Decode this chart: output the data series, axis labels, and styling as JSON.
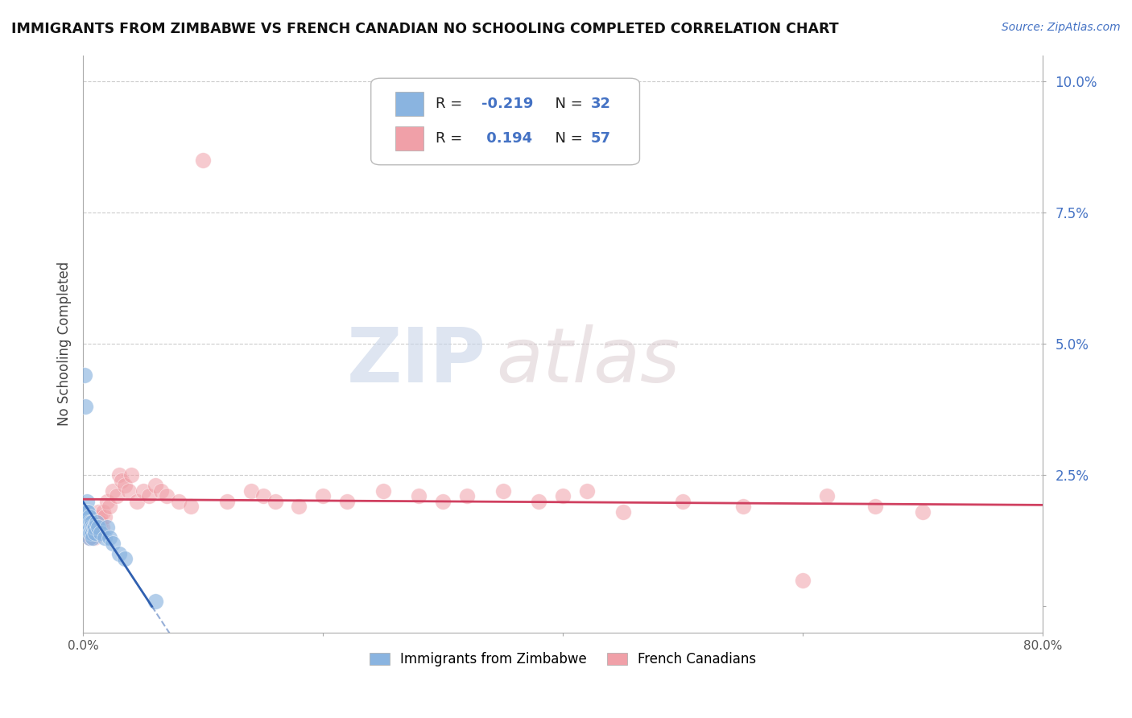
{
  "title": "IMMIGRANTS FROM ZIMBABWE VS FRENCH CANADIAN NO SCHOOLING COMPLETED CORRELATION CHART",
  "source": "Source: ZipAtlas.com",
  "ylabel": "No Schooling Completed",
  "xlim": [
    0.0,
    0.8
  ],
  "ylim": [
    -0.005,
    0.105
  ],
  "ytick_vals": [
    0.0,
    0.025,
    0.05,
    0.075,
    0.1
  ],
  "ytick_labels": [
    "",
    "2.5%",
    "5.0%",
    "7.5%",
    "10.0%"
  ],
  "xtick_vals": [
    0.0,
    0.2,
    0.4,
    0.6,
    0.8
  ],
  "xtick_labels": [
    "0.0%",
    "",
    "",
    "",
    "80.0%"
  ],
  "legend1_label": "Immigrants from Zimbabwe",
  "legend2_label": "French Canadians",
  "R1": -0.219,
  "N1": 32,
  "R2": 0.194,
  "N2": 57,
  "color_blue": "#8ab4e0",
  "color_pink": "#f0a0a8",
  "color_blue_line": "#3060b0",
  "color_pink_line": "#d04060",
  "watermark_zip": "ZIP",
  "watermark_atlas": "atlas",
  "blue_x": [
    0.001,
    0.002,
    0.002,
    0.003,
    0.003,
    0.003,
    0.004,
    0.004,
    0.004,
    0.005,
    0.005,
    0.005,
    0.006,
    0.006,
    0.006,
    0.007,
    0.007,
    0.008,
    0.008,
    0.009,
    0.01,
    0.01,
    0.011,
    0.013,
    0.015,
    0.018,
    0.02,
    0.022,
    0.025,
    0.03,
    0.035,
    0.06
  ],
  "blue_y": [
    0.044,
    0.038,
    0.015,
    0.02,
    0.018,
    0.016,
    0.015,
    0.018,
    0.016,
    0.017,
    0.015,
    0.013,
    0.016,
    0.015,
    0.014,
    0.016,
    0.014,
    0.015,
    0.013,
    0.015,
    0.015,
    0.014,
    0.016,
    0.015,
    0.014,
    0.013,
    0.015,
    0.013,
    0.012,
    0.01,
    0.009,
    0.001
  ],
  "pink_x": [
    0.002,
    0.003,
    0.004,
    0.005,
    0.006,
    0.007,
    0.008,
    0.009,
    0.01,
    0.011,
    0.012,
    0.013,
    0.014,
    0.015,
    0.016,
    0.017,
    0.018,
    0.02,
    0.022,
    0.025,
    0.028,
    0.03,
    0.032,
    0.035,
    0.038,
    0.04,
    0.045,
    0.05,
    0.055,
    0.06,
    0.065,
    0.07,
    0.08,
    0.09,
    0.1,
    0.12,
    0.14,
    0.15,
    0.16,
    0.18,
    0.2,
    0.22,
    0.25,
    0.28,
    0.3,
    0.32,
    0.35,
    0.38,
    0.4,
    0.42,
    0.45,
    0.5,
    0.55,
    0.6,
    0.62,
    0.66,
    0.7
  ],
  "pink_y": [
    0.015,
    0.014,
    0.016,
    0.013,
    0.015,
    0.016,
    0.014,
    0.013,
    0.016,
    0.015,
    0.016,
    0.018,
    0.017,
    0.016,
    0.015,
    0.018,
    0.017,
    0.02,
    0.019,
    0.022,
    0.021,
    0.025,
    0.024,
    0.023,
    0.022,
    0.025,
    0.02,
    0.022,
    0.021,
    0.023,
    0.022,
    0.021,
    0.02,
    0.019,
    0.085,
    0.02,
    0.022,
    0.021,
    0.02,
    0.019,
    0.021,
    0.02,
    0.022,
    0.021,
    0.02,
    0.021,
    0.022,
    0.02,
    0.021,
    0.022,
    0.018,
    0.02,
    0.019,
    0.005,
    0.021,
    0.019,
    0.018
  ]
}
